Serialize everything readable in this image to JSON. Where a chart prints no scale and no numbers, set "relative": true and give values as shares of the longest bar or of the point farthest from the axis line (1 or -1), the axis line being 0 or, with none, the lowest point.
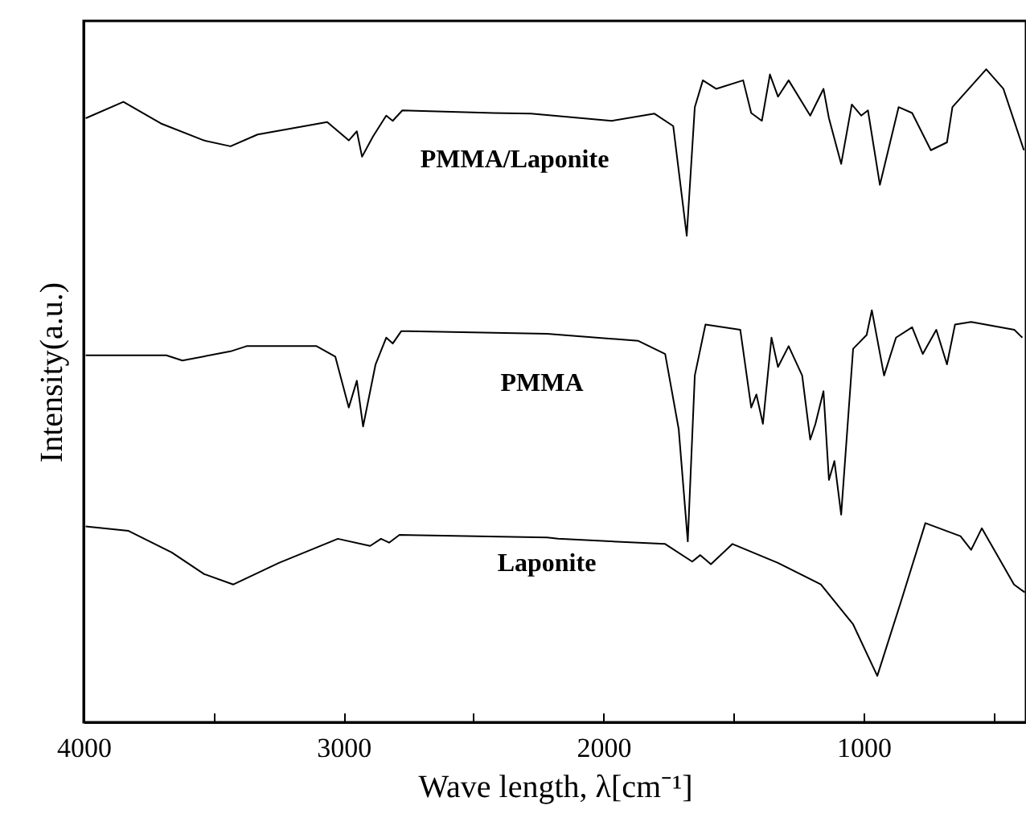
{
  "chart_data": {
    "type": "line",
    "relative": true,
    "xlabel": "Wave length, λ[cm⁻¹]",
    "ylabel": "Intensity(a.u.)",
    "xlim": [
      4000,
      375
    ],
    "xticks": [
      4000,
      {
        "value": 3500,
        "label": null
      },
      3000,
      {
        "value": 2500,
        "label": null
      },
      2000,
      {
        "value": 1500,
        "label": null
      },
      1000,
      {
        "value": 500,
        "label": null
      }
    ],
    "grid": false,
    "legend": false,
    "marker": "none",
    "line_style": "solid",
    "series": [
      {
        "name": "PMMA/Laponite",
        "color": "#000000",
        "x": [
          3992,
          3847,
          3703,
          3537,
          3435,
          3331,
          3063,
          2980,
          2949,
          2929,
          2887,
          2836,
          2811,
          2774,
          2423,
          2279,
          1969,
          1804,
          1732,
          1680,
          1649,
          1618,
          1567,
          1463,
          1432,
          1391,
          1360,
          1329,
          1288,
          1205,
          1154,
          1133,
          1086,
          1045,
          1009,
          983,
          937,
          865,
          813,
          741,
          679,
          658,
          528,
          462,
          383
        ],
        "values": [
          0.925,
          0.95,
          0.917,
          0.891,
          0.882,
          0.9,
          0.919,
          0.891,
          0.905,
          0.866,
          0.897,
          0.929,
          0.921,
          0.937,
          0.933,
          0.932,
          0.921,
          0.932,
          0.913,
          0.745,
          0.942,
          0.983,
          0.97,
          0.983,
          0.933,
          0.921,
          0.992,
          0.958,
          0.983,
          0.929,
          0.97,
          0.925,
          0.855,
          0.946,
          0.929,
          0.937,
          0.823,
          0.942,
          0.933,
          0.876,
          0.888,
          0.942,
          1.0,
          0.97,
          0.876
        ]
      },
      {
        "name": "PMMA",
        "color": "#000000",
        "x": [
          3992,
          3682,
          3620,
          3435,
          3373,
          3104,
          3032,
          2980,
          2949,
          2925,
          2877,
          2836,
          2811,
          2778,
          2217,
          1866,
          1763,
          1711,
          1676,
          1649,
          1608,
          1474,
          1432,
          1412,
          1387,
          1354,
          1329,
          1288,
          1236,
          1205,
          1185,
          1154,
          1133,
          1112,
          1086,
          1040,
          988,
          968,
          921,
          875,
          813,
          772,
          720,
          679,
          648,
          586,
          420,
          389
        ],
        "values": [
          0.562,
          0.562,
          0.554,
          0.568,
          0.576,
          0.576,
          0.56,
          0.482,
          0.523,
          0.453,
          0.548,
          0.589,
          0.58,
          0.599,
          0.595,
          0.584,
          0.564,
          0.449,
          0.277,
          0.531,
          0.609,
          0.601,
          0.482,
          0.502,
          0.457,
          0.589,
          0.544,
          0.576,
          0.531,
          0.433,
          0.457,
          0.507,
          0.371,
          0.4,
          0.318,
          0.572,
          0.593,
          0.631,
          0.531,
          0.589,
          0.605,
          0.564,
          0.601,
          0.548,
          0.609,
          0.613,
          0.601,
          0.589
        ]
      },
      {
        "name": "Laponite",
        "color": "#000000",
        "x": [
          3992,
          3827,
          3661,
          3537,
          3424,
          3249,
          3022,
          2898,
          2856,
          2825,
          2785,
          2217,
          2175,
          1763,
          1659,
          1628,
          1587,
          1504,
          1329,
          1164,
          1040,
          947,
          855,
          762,
          627,
          586,
          545,
          421,
          380
        ],
        "values": [
          0.3,
          0.293,
          0.26,
          0.227,
          0.211,
          0.244,
          0.281,
          0.27,
          0.281,
          0.275,
          0.287,
          0.283,
          0.281,
          0.273,
          0.246,
          0.256,
          0.242,
          0.273,
          0.244,
          0.211,
          0.15,
          0.071,
          0.186,
          0.305,
          0.285,
          0.264,
          0.297,
          0.211,
          0.199
        ]
      }
    ]
  }
}
